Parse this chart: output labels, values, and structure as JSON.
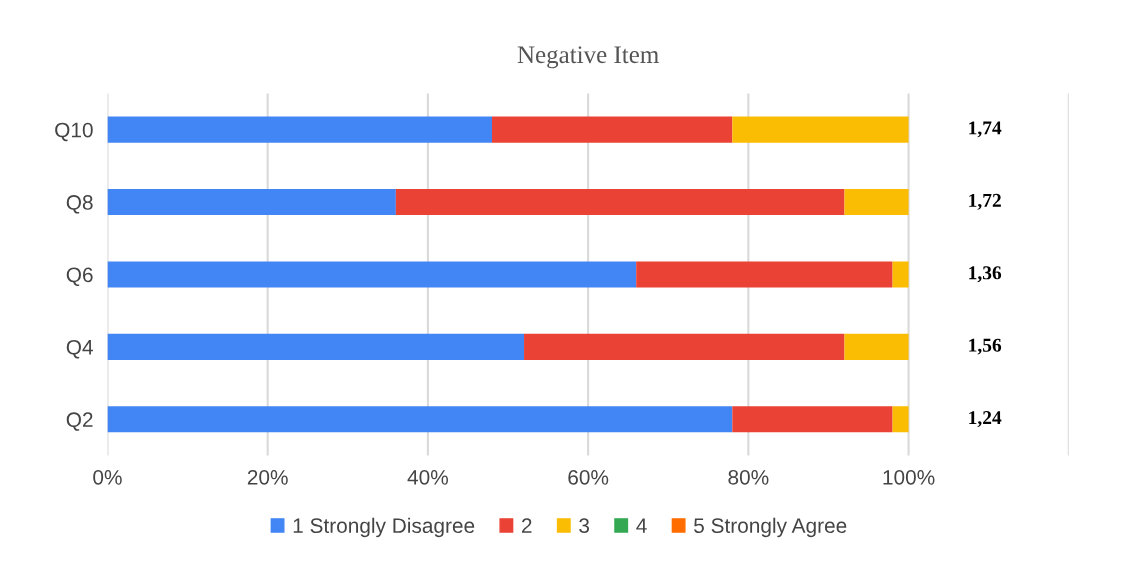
{
  "chart_data": {
    "type": "bar",
    "orientation": "horizontal",
    "stacked": true,
    "title": "Negative Item",
    "categories": [
      "Q10",
      "Q8",
      "Q6",
      "Q4",
      "Q2"
    ],
    "series": [
      {
        "name": "1 Strongly Disagree",
        "color": "#4285f4",
        "values": [
          48,
          36,
          66,
          52,
          78
        ]
      },
      {
        "name": "2",
        "color": "#ea4335",
        "values": [
          30,
          56,
          32,
          40,
          20
        ]
      },
      {
        "name": "3",
        "color": "#fbbc04",
        "values": [
          22,
          8,
          2,
          8,
          2
        ]
      },
      {
        "name": "4",
        "color": "#34a853",
        "values": [
          0,
          0,
          0,
          0,
          0
        ]
      },
      {
        "name": "5 Strongly Agree",
        "color": "#ff6d01",
        "values": [
          0,
          0,
          0,
          0,
          0
        ]
      }
    ],
    "xlim": [
      0,
      120
    ],
    "xticks": [
      {
        "value": 0,
        "label": "0%"
      },
      {
        "value": 20,
        "label": "20%"
      },
      {
        "value": 40,
        "label": "40%"
      },
      {
        "value": 60,
        "label": "60%"
      },
      {
        "value": 80,
        "label": "80%"
      },
      {
        "value": 100,
        "label": "100%"
      },
      {
        "value": 120,
        "label": null
      }
    ],
    "grid": "x",
    "legend": "bottom",
    "annotations": [
      "1,74",
      "1,72",
      "1,36",
      "1,56",
      "1,24"
    ]
  }
}
